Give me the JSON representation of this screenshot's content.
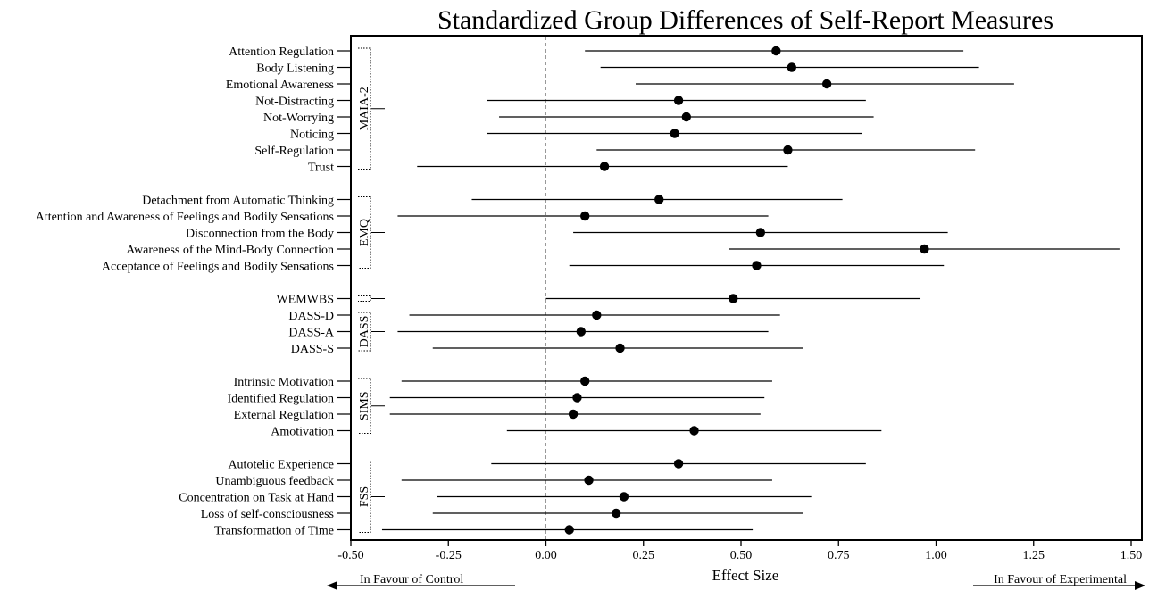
{
  "chart_data": {
    "type": "scatter",
    "title": "Standardized Group Differences of Self-Report Measures",
    "xlabel": "Effect Size",
    "xlim": [
      -0.5,
      1.5
    ],
    "xticks": [
      -0.5,
      -0.25,
      0.0,
      0.25,
      0.5,
      0.75,
      1.0,
      1.25,
      1.5
    ],
    "xtick_labels": [
      "-0.50",
      "-0.25",
      "0.00",
      "0.25",
      "0.50",
      "0.75",
      "1.00",
      "1.25",
      "1.50"
    ],
    "reference_line": 0,
    "favour_left": "In Favour of Control",
    "favour_right": "In Favour of Experimental",
    "groups": [
      {
        "name": "MAIA-2",
        "items": [
          {
            "label": "Attention Regulation",
            "estimate": 0.59,
            "lower": 0.1,
            "upper": 1.07
          },
          {
            "label": "Body Listening",
            "estimate": 0.63,
            "lower": 0.14,
            "upper": 1.11
          },
          {
            "label": "Emotional Awareness",
            "estimate": 0.72,
            "lower": 0.23,
            "upper": 1.2
          },
          {
            "label": "Not-Distracting",
            "estimate": 0.34,
            "lower": -0.15,
            "upper": 0.82
          },
          {
            "label": "Not-Worrying",
            "estimate": 0.36,
            "lower": -0.12,
            "upper": 0.84
          },
          {
            "label": "Noticing",
            "estimate": 0.33,
            "lower": -0.15,
            "upper": 0.81
          },
          {
            "label": "Self-Regulation",
            "estimate": 0.62,
            "lower": 0.13,
            "upper": 1.1
          },
          {
            "label": "Trust",
            "estimate": 0.15,
            "lower": -0.33,
            "upper": 0.62
          }
        ]
      },
      {
        "name": "EMQ",
        "items": [
          {
            "label": "Detachment from Automatic Thinking",
            "estimate": 0.29,
            "lower": -0.19,
            "upper": 0.76
          },
          {
            "label": "Attention and Awareness of Feelings and Bodily Sensations",
            "estimate": 0.1,
            "lower": -0.38,
            "upper": 0.57
          },
          {
            "label": "Disconnection from the Body",
            "estimate": 0.55,
            "lower": 0.07,
            "upper": 1.03
          },
          {
            "label": "Awareness of the Mind-Body Connection",
            "estimate": 0.97,
            "lower": 0.47,
            "upper": 1.47
          },
          {
            "label": "Acceptance of Feelings and Bodily Sensations",
            "estimate": 0.54,
            "lower": 0.06,
            "upper": 1.02
          }
        ]
      },
      {
        "name": "",
        "items": [
          {
            "label": "WEMWBS",
            "estimate": 0.48,
            "lower": 0.0,
            "upper": 0.96
          }
        ]
      },
      {
        "name": "DASS",
        "items": [
          {
            "label": "DASS-D",
            "estimate": 0.13,
            "lower": -0.35,
            "upper": 0.6
          },
          {
            "label": "DASS-A",
            "estimate": 0.09,
            "lower": -0.38,
            "upper": 0.57
          },
          {
            "label": "DASS-S",
            "estimate": 0.19,
            "lower": -0.29,
            "upper": 0.66
          }
        ]
      },
      {
        "name": "SIMS",
        "items": [
          {
            "label": "Intrinsic Motivation",
            "estimate": 0.1,
            "lower": -0.37,
            "upper": 0.58
          },
          {
            "label": "Identified Regulation",
            "estimate": 0.08,
            "lower": -0.4,
            "upper": 0.56
          },
          {
            "label": "External Regulation",
            "estimate": 0.07,
            "lower": -0.4,
            "upper": 0.55
          },
          {
            "label": "Amotivation",
            "estimate": 0.38,
            "lower": -0.1,
            "upper": 0.86
          }
        ]
      },
      {
        "name": "FSS",
        "items": [
          {
            "label": "Autotelic Experience",
            "estimate": 0.34,
            "lower": -0.14,
            "upper": 0.82
          },
          {
            "label": "Unambiguous feedback",
            "estimate": 0.11,
            "lower": -0.37,
            "upper": 0.58
          },
          {
            "label": "Concentration on Task at Hand",
            "estimate": 0.2,
            "lower": -0.28,
            "upper": 0.68
          },
          {
            "label": "Loss of self-consciousness",
            "estimate": 0.18,
            "lower": -0.29,
            "upper": 0.66
          },
          {
            "label": "Transformation of Time",
            "estimate": 0.06,
            "lower": -0.42,
            "upper": 0.53
          }
        ]
      }
    ]
  }
}
